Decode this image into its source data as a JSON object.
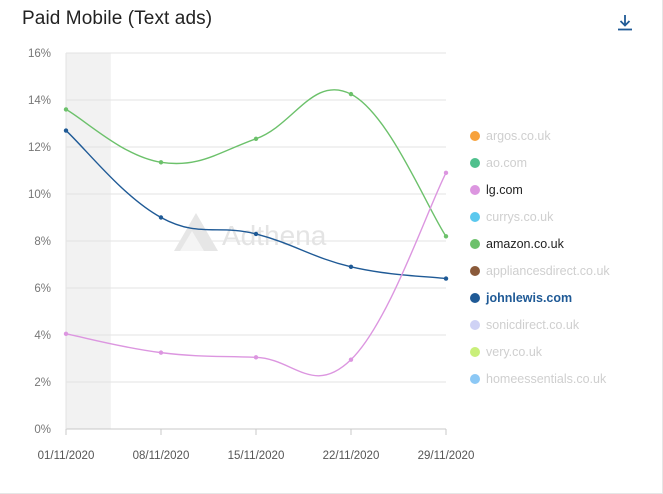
{
  "header": {
    "title": "Paid Mobile (Text ads)",
    "download_icon": "download-icon"
  },
  "watermark": {
    "text": "Adthena"
  },
  "chart_data": {
    "type": "line",
    "title": "Paid Mobile (Text ads)",
    "xlabel": "",
    "ylabel": "",
    "x": [
      "01/11/2020",
      "08/11/2020",
      "15/11/2020",
      "22/11/2020",
      "29/11/2020"
    ],
    "y_ticks": [
      "0%",
      "2%",
      "4%",
      "6%",
      "8%",
      "10%",
      "12%",
      "14%",
      "16%"
    ],
    "ylim": [
      0,
      16
    ],
    "unit": "%",
    "grid": true,
    "legend_position": "right",
    "shaded_x_range": [
      "01/11/2020",
      "04/11/2020"
    ],
    "series": [
      {
        "name": "amazon.co.uk",
        "color": "#6cc16b",
        "values": [
          13.6,
          11.35,
          12.35,
          14.25,
          8.2
        ]
      },
      {
        "name": "johnlewis.com",
        "color": "#1f5a96",
        "values": [
          12.7,
          9.0,
          8.3,
          6.9,
          6.4
        ]
      },
      {
        "name": "lg.com",
        "color": "#dc96e0",
        "values": [
          4.05,
          3.25,
          3.05,
          2.95,
          10.9
        ]
      }
    ]
  },
  "legend": [
    {
      "label": "argos.co.uk",
      "color": "#f7a23c",
      "state": "inactive"
    },
    {
      "label": "ao.com",
      "color": "#4fc08d",
      "state": "inactive"
    },
    {
      "label": "lg.com",
      "color": "#dc96e0",
      "state": "active"
    },
    {
      "label": "currys.co.uk",
      "color": "#5bc8ee",
      "state": "inactive"
    },
    {
      "label": "amazon.co.uk",
      "color": "#6cc16b",
      "state": "active"
    },
    {
      "label": "appliancesdirect.co.uk",
      "color": "#8a5a3a",
      "state": "inactive"
    },
    {
      "label": "johnlewis.com",
      "color": "#1f5a96",
      "state": "highlight"
    },
    {
      "label": "sonicdirect.co.uk",
      "color": "#cfd2f5",
      "state": "inactive"
    },
    {
      "label": "very.co.uk",
      "color": "#c9ef7a",
      "state": "inactive"
    },
    {
      "label": "homeessentials.co.uk",
      "color": "#8cc8f5",
      "state": "inactive"
    }
  ]
}
